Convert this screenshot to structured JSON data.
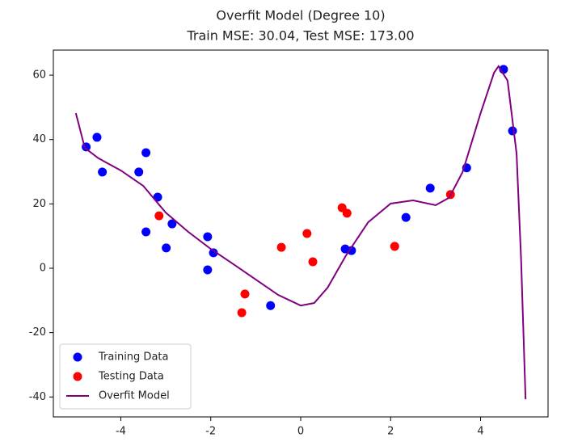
{
  "chart_data": {
    "type": "scatter",
    "title": "Overfit Model (Degree 10)",
    "subtitle": "Train MSE: 30.04, Test MSE: 173.00",
    "xlim": [
      -5.5,
      5.5
    ],
    "ylim": [
      -46.2,
      67.8
    ],
    "xticks": [
      -4,
      -2,
      0,
      2,
      4
    ],
    "yticks": [
      -40,
      -20,
      0,
      20,
      40,
      60
    ],
    "grid": false,
    "legend": "lower left",
    "series": [
      {
        "name": "Training Data",
        "color": "#0000ff",
        "type": "scatter",
        "x": [
          -4.77,
          -4.53,
          -4.41,
          -3.6,
          -3.44,
          -3.44,
          -3.18,
          -2.99,
          -2.86,
          -2.07,
          -2.07,
          -1.94,
          -0.67,
          0.99,
          1.13,
          2.34,
          2.88,
          3.69,
          4.51,
          4.71
        ],
        "values": [
          37.7,
          40.7,
          29.9,
          29.9,
          35.9,
          11.3,
          22.1,
          6.3,
          13.8,
          9.8,
          -0.5,
          4.8,
          -11.6,
          6.0,
          5.5,
          15.8,
          24.9,
          31.2,
          61.8,
          42.7
        ]
      },
      {
        "name": "Testing Data",
        "color": "#ff0000",
        "type": "scatter",
        "x": [
          -3.15,
          -1.24,
          -1.31,
          -0.43,
          0.14,
          0.27,
          0.92,
          1.03,
          2.09,
          3.33
        ],
        "values": [
          16.3,
          -8.0,
          -13.8,
          6.5,
          10.8,
          2.0,
          18.8,
          17.1,
          6.8,
          22.9
        ]
      },
      {
        "name": "Overfit Model",
        "color": "#800080",
        "type": "line",
        "x": [
          -5.0,
          -4.8,
          -4.5,
          -4.0,
          -3.5,
          -3.2,
          -3.0,
          -2.5,
          -2.0,
          -1.5,
          -1.0,
          -0.5,
          0.0,
          0.3,
          0.6,
          1.0,
          1.5,
          2.0,
          2.5,
          3.0,
          3.3,
          3.6,
          4.0,
          4.3,
          4.4,
          4.6,
          4.8,
          4.9,
          5.0
        ],
        "values": [
          48.2,
          37.4,
          34.2,
          30.4,
          25.6,
          20.6,
          17.3,
          11.3,
          6.0,
          1.3,
          -3.5,
          -8.3,
          -11.6,
          -10.8,
          -6.0,
          3.8,
          14.3,
          20.1,
          21.1,
          19.6,
          21.9,
          29.9,
          48.2,
          60.8,
          62.8,
          58.3,
          35.7,
          3.0,
          -40.7
        ]
      }
    ]
  }
}
